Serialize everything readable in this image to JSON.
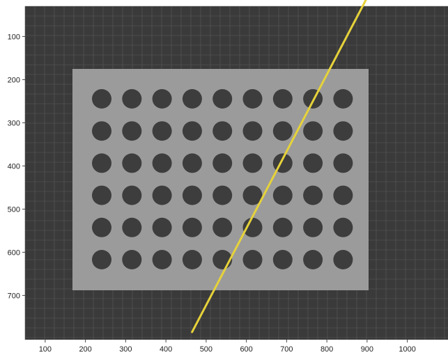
{
  "image_view": {
    "x_axis": {
      "ticks": [
        "100",
        "200",
        "300",
        "400",
        "500",
        "600",
        "700",
        "800",
        "900",
        "1000"
      ]
    },
    "y_axis": {
      "ticks": [
        "100",
        "200",
        "300",
        "400",
        "500",
        "600",
        "700"
      ]
    },
    "calibration_target": {
      "pattern": "circle-grid",
      "rows": 6,
      "columns": 9
    },
    "overlay_line": {
      "color": "#e6d23a",
      "from": {
        "x": 900,
        "y": 10
      },
      "to": {
        "x": 465,
        "y": 785
      }
    },
    "colors": {
      "background": "#3a3a3a",
      "board": "#9b9b9b",
      "dots": "#3d3d3d",
      "grid": "#5a5a5a"
    }
  }
}
